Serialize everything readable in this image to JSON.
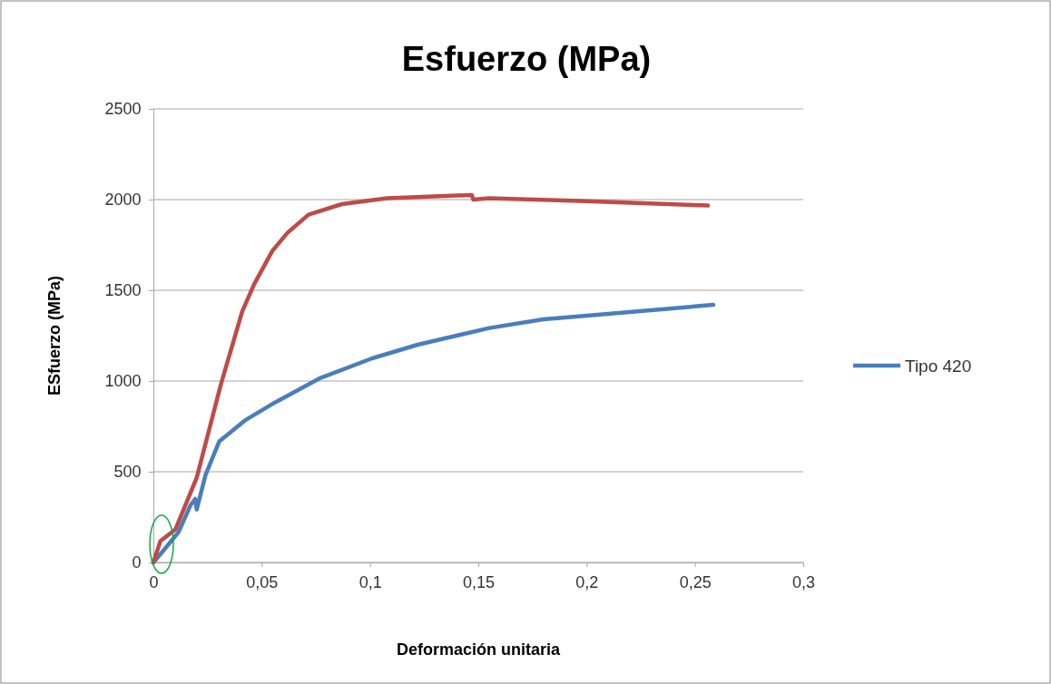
{
  "chart_data": {
    "type": "line",
    "title": "Esfuerzo (MPa)",
    "xlabel": "Deformación unitaria",
    "ylabel": "ESfuerzo (MPa)",
    "xlim": [
      0,
      0.3
    ],
    "xticks": [
      0,
      {
        "value": 0.05,
        "label": "0,05"
      },
      {
        "value": 0.1,
        "label": "0,1"
      },
      {
        "value": 0.15,
        "label": "0,15"
      },
      {
        "value": 0.2,
        "label": "0,2"
      },
      {
        "value": 0.25,
        "label": "0,25"
      },
      {
        "value": 0.3,
        "label": "0,3"
      }
    ],
    "ylim": [
      0,
      2500
    ],
    "yticks": [
      0,
      500,
      1000,
      1500,
      2000,
      2500
    ],
    "grid": "y",
    "legend": "right",
    "marker": "none",
    "line_style": "solid",
    "series": [
      {
        "name": "Tipo 420",
        "color": "#4a7ebb",
        "x": [
          0,
          0.0046,
          0.0116,
          0.0172,
          0.0193,
          0.02,
          0.0241,
          0.0304,
          0.0423,
          0.0563,
          0.0772,
          0.101,
          0.122,
          0.155,
          0.18,
          0.2,
          0.2585
        ],
        "values": [
          0,
          65,
          167,
          317,
          350,
          292,
          483,
          667,
          783,
          883,
          1017,
          1125,
          1200,
          1292,
          1340,
          1360,
          1420
        ]
      },
      {
        "color": "#be4b48",
        "x": [
          0,
          0.0032,
          0.0102,
          0.02,
          0.0312,
          0.041,
          0.0465,
          0.0549,
          0.0619,
          0.0716,
          0.087,
          0.108,
          0.147,
          0.1477,
          0.155,
          0.197,
          0.256
        ],
        "values": [
          0,
          117,
          183,
          467,
          983,
          1383,
          1533,
          1717,
          1817,
          1917,
          1975,
          2008,
          2025,
          2000,
          2008,
          1992,
          1967
        ]
      }
    ]
  }
}
